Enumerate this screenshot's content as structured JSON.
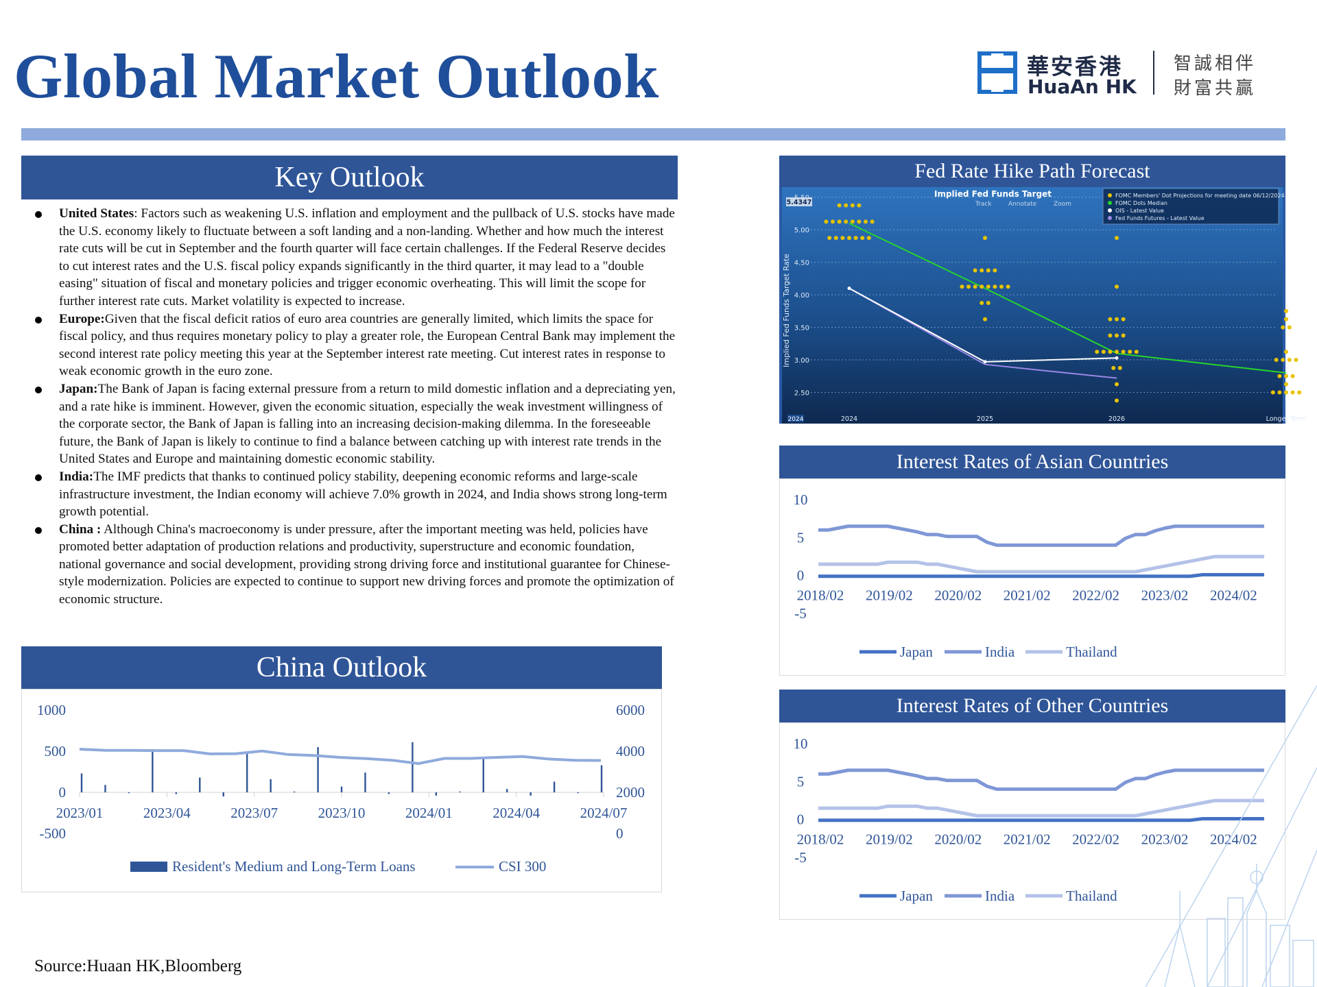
{
  "title": "Global Market Outlook",
  "logo": {
    "cn_name": "華安香港",
    "en_name": "HuaAn HK",
    "slogan_line1": "智誠相伴",
    "slogan_line2": "財富共贏"
  },
  "key_outlook": {
    "header": "Key Outlook",
    "items": [
      {
        "label": "United States",
        "sep": ": ",
        "text": "Factors such as weakening U.S. inflation and employment and the pullback of U.S. stocks have made the U.S. economy likely to fluctuate between a soft landing and a non-landing. Whether and how much the interest rate cuts will be cut in September and the fourth quarter will face certain challenges. If the Federal Reserve decides to cut interest rates and the U.S. fiscal policy expands significantly in the third quarter, it may lead to a \"double easing\" situation of fiscal and monetary policies and trigger economic overheating. This will limit the scope for further interest rate cuts. Market volatility is expected to increase."
      },
      {
        "label": "Europe:",
        "sep": "",
        "text": "Given that the fiscal deficit ratios of euro area countries are generally limited, which limits the space for fiscal policy, and thus requires monetary policy to play a greater role, the European Central Bank may implement the second interest rate policy meeting this year at the September interest rate meeting. Cut interest rates in response to weak economic growth in the euro zone."
      },
      {
        "label": "Japan:",
        "sep": "",
        "text": "The Bank of Japan is facing external pressure from a return to mild domestic inflation and a depreciating yen, and a rate hike is imminent. However, given the economic situation, especially the weak investment willingness of the corporate sector, the Bank of Japan is falling into an increasing decision-making dilemma. In the foreseeable future, the Bank of Japan is likely to continue to find a balance between catching up with interest rate trends in the United States and Europe and maintaining domestic economic stability."
      },
      {
        "label": "India:",
        "sep": "",
        "text": "The IMF predicts that thanks to continued policy stability, deepening economic reforms and large-scale infrastructure investment, the Indian economy will achieve 7.0% growth in 2024, and India shows strong long-term growth potential."
      },
      {
        "label": "China :",
        "sep": " ",
        "text": "Although China's macroeconomy is under pressure, after the important meeting was held, policies have promoted better adaptation of production relations and productivity, superstructure and economic foundation, national governance and social development, providing strong driving force and institutional guarantee for Chinese-style modernization. Policies are expected to continue to support new driving forces and promote the optimization of economic structure."
      }
    ]
  },
  "china_outlook": {
    "header": "China Outlook"
  },
  "fed_panel": {
    "header": "Fed Rate Hike Path Forecast"
  },
  "asia_panel": {
    "header": "Interest Rates of Asian Countries"
  },
  "other_panel": {
    "header": "Interest Rates of Other Countries"
  },
  "source": "Source:Huaan HK,Bloomberg",
  "chart_data": [
    {
      "id": "china",
      "type": "bar+line",
      "title": "",
      "y_left": {
        "ticks": [
          "1000",
          "500",
          "0",
          "-500"
        ],
        "range": [
          -500,
          1000
        ]
      },
      "y_right": {
        "ticks": [
          "6000",
          "4000",
          "2000",
          "0"
        ],
        "range": [
          0,
          6000
        ]
      },
      "x_ticks": [
        "2023/01",
        "2023/04",
        "2023/07",
        "2023/10",
        "2024/01",
        "2024/04",
        "2024/07"
      ],
      "colors": {
        "bar": "#2f5597",
        "line": "#8faadc"
      },
      "series": [
        {
          "name": "Resident's Medium and Long-Term Loans",
          "kind": "bar",
          "values": [
            230,
            90,
            -10,
            520,
            -20,
            180,
            -50,
            470,
            160,
            10,
            550,
            70,
            240,
            -20,
            610,
            -40,
            10,
            420,
            40,
            -40,
            130,
            -10,
            330
          ]
        },
        {
          "name": "CSI 300",
          "kind": "line",
          "values": [
            4100,
            4040,
            4040,
            4030,
            4030,
            3870,
            3880,
            4010,
            3840,
            3790,
            3700,
            3640,
            3560,
            3400,
            3650,
            3650,
            3700,
            3740,
            3620,
            3560,
            3550
          ]
        }
      ]
    },
    {
      "id": "fed",
      "type": "scatter+line",
      "title": "Implied Fed Funds Target",
      "ylabel": "Implied Fed Funds Target Rate",
      "y_ticks": [
        "5.50",
        "5.00",
        "4.50",
        "4.00",
        "3.50",
        "3.00",
        "2.50"
      ],
      "y_range": [
        2.2,
        5.55
      ],
      "current_value": "5.4347",
      "x_ticks": [
        "2024",
        "2025",
        "2026",
        "Longer Term"
      ],
      "x_corner_label": "2024",
      "toolbar": [
        "Track",
        "Annotate",
        "Zoom"
      ],
      "legend": [
        "FOMC Members' Dot Projections for meeting date 06/12/2024",
        "FOMC Dots Median",
        "OIS - Latest Value",
        "Fed Funds Futures - Latest Value"
      ],
      "colors": {
        "dots": "#e7c300",
        "median": "#25d62a",
        "ois": "#ffffff",
        "futures": "#9a88e6"
      },
      "dot_projections": [
        {
          "x": 0,
          "dots": [
            [
              5.375,
              4
            ],
            [
              5.125,
              8
            ],
            [
              4.875,
              7
            ]
          ]
        },
        {
          "x": 1,
          "dots": [
            [
              4.875,
              1
            ],
            [
              4.375,
              4
            ],
            [
              4.125,
              8
            ],
            [
              3.875,
              2
            ],
            [
              3.625,
              1
            ]
          ]
        },
        {
          "x": 2,
          "dots": [
            [
              4.875,
              1
            ],
            [
              4.125,
              1
            ],
            [
              3.625,
              3
            ],
            [
              3.375,
              3
            ],
            [
              3.125,
              7
            ],
            [
              2.875,
              2
            ],
            [
              2.625,
              1
            ],
            [
              2.375,
              1
            ]
          ]
        },
        {
          "x": 3,
          "dots": [
            [
              3.75,
              1
            ],
            [
              3.625,
              1
            ],
            [
              3.5,
              2
            ],
            [
              3.125,
              1
            ],
            [
              3.0,
              4
            ],
            [
              2.75,
              3
            ],
            [
              2.625,
              1
            ],
            [
              2.5,
              5
            ]
          ]
        }
      ],
      "median": [
        [
          0,
          5.1
        ],
        [
          1,
          4.1
        ],
        [
          2,
          3.1
        ],
        [
          3,
          2.8
        ]
      ],
      "ois": [
        [
          0,
          4.1
        ],
        [
          1,
          2.97
        ],
        [
          2,
          3.03
        ]
      ],
      "futures": [
        [
          0,
          4.1
        ],
        [
          1,
          2.93
        ],
        [
          2,
          2.72
        ]
      ]
    },
    {
      "id": "asia",
      "type": "line",
      "title": "",
      "y_ticks": [
        "10",
        "5",
        "0",
        "-5"
      ],
      "y_range": [
        -5,
        10
      ],
      "x_ticks": [
        "2018/02",
        "2019/02",
        "2020/02",
        "2021/02",
        "2022/02",
        "2023/02",
        "2024/02"
      ],
      "colors": {
        "Japan": "#4472c4",
        "India": "#7f97d6",
        "Thailand": "#b4c2e8"
      },
      "series": [
        {
          "name": "Japan",
          "values": [
            -0.1,
            -0.1,
            -0.1,
            -0.1,
            -0.1,
            -0.1,
            -0.1,
            -0.1,
            -0.1,
            -0.1,
            -0.1,
            -0.1,
            -0.1,
            -0.1,
            -0.1,
            -0.1,
            -0.1,
            -0.1,
            -0.1,
            -0.1,
            -0.1,
            -0.1,
            -0.1,
            -0.1,
            -0.1,
            -0.1,
            -0.1,
            -0.1,
            -0.1,
            -0.1,
            -0.1,
            0.1,
            0.1,
            0.1,
            0.1,
            0.1,
            0.1
          ]
        },
        {
          "name": "India",
          "values": [
            6.0,
            6.0,
            6.25,
            6.5,
            6.5,
            6.5,
            6.5,
            6.5,
            6.25,
            6.0,
            5.75,
            5.4,
            5.4,
            5.15,
            5.15,
            5.15,
            5.15,
            4.4,
            4.0,
            4.0,
            4.0,
            4.0,
            4.0,
            4.0,
            4.0,
            4.0,
            4.0,
            4.0,
            4.0,
            4.0,
            4.0,
            4.9,
            5.4,
            5.4,
            5.9,
            6.25,
            6.5,
            6.5,
            6.5,
            6.5,
            6.5,
            6.5,
            6.5,
            6.5,
            6.5,
            6.5
          ]
        },
        {
          "name": "Thailand",
          "values": [
            1.5,
            1.5,
            1.5,
            1.5,
            1.5,
            1.5,
            1.5,
            1.75,
            1.75,
            1.75,
            1.75,
            1.5,
            1.5,
            1.25,
            1.0,
            0.75,
            0.5,
            0.5,
            0.5,
            0.5,
            0.5,
            0.5,
            0.5,
            0.5,
            0.5,
            0.5,
            0.5,
            0.5,
            0.5,
            0.5,
            0.5,
            0.5,
            0.5,
            0.75,
            1.0,
            1.25,
            1.5,
            1.75,
            2.0,
            2.25,
            2.5,
            2.5,
            2.5,
            2.5,
            2.5,
            2.5
          ]
        }
      ]
    },
    {
      "id": "other",
      "type": "line",
      "title": "",
      "y_ticks": [
        "10",
        "5",
        "0",
        "-5"
      ],
      "y_range": [
        -5,
        10
      ],
      "x_ticks": [
        "2018/02",
        "2019/02",
        "2020/02",
        "2021/02",
        "2022/02",
        "2023/02",
        "2024/02"
      ],
      "colors": {
        "Japan": "#4472c4",
        "India": "#7f97d6",
        "Thailand": "#b4c2e8"
      },
      "series": [
        {
          "name": "Japan",
          "values": [
            -0.1,
            -0.1,
            -0.1,
            -0.1,
            -0.1,
            -0.1,
            -0.1,
            -0.1,
            -0.1,
            -0.1,
            -0.1,
            -0.1,
            -0.1,
            -0.1,
            -0.1,
            -0.1,
            -0.1,
            -0.1,
            -0.1,
            -0.1,
            -0.1,
            -0.1,
            -0.1,
            -0.1,
            -0.1,
            -0.1,
            -0.1,
            -0.1,
            -0.1,
            -0.1,
            -0.1,
            0.1,
            0.1,
            0.1,
            0.1,
            0.1,
            0.1
          ]
        },
        {
          "name": "India",
          "values": [
            6.0,
            6.0,
            6.25,
            6.5,
            6.5,
            6.5,
            6.5,
            6.5,
            6.25,
            6.0,
            5.75,
            5.4,
            5.4,
            5.15,
            5.15,
            5.15,
            5.15,
            4.4,
            4.0,
            4.0,
            4.0,
            4.0,
            4.0,
            4.0,
            4.0,
            4.0,
            4.0,
            4.0,
            4.0,
            4.0,
            4.0,
            4.9,
            5.4,
            5.4,
            5.9,
            6.25,
            6.5,
            6.5,
            6.5,
            6.5,
            6.5,
            6.5,
            6.5,
            6.5,
            6.5,
            6.5
          ]
        },
        {
          "name": "Thailand",
          "values": [
            1.5,
            1.5,
            1.5,
            1.5,
            1.5,
            1.5,
            1.5,
            1.75,
            1.75,
            1.75,
            1.75,
            1.5,
            1.5,
            1.25,
            1.0,
            0.75,
            0.5,
            0.5,
            0.5,
            0.5,
            0.5,
            0.5,
            0.5,
            0.5,
            0.5,
            0.5,
            0.5,
            0.5,
            0.5,
            0.5,
            0.5,
            0.5,
            0.5,
            0.75,
            1.0,
            1.25,
            1.5,
            1.75,
            2.0,
            2.25,
            2.5,
            2.5,
            2.5,
            2.5,
            2.5,
            2.5
          ]
        }
      ]
    }
  ]
}
